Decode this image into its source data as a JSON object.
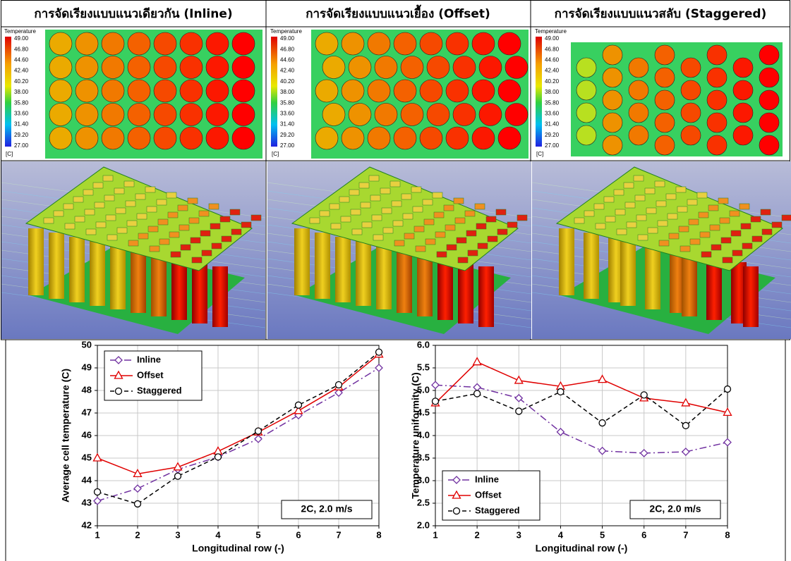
{
  "header": {
    "columns": [
      "การจัดเรียงแบบแนวเดียวกัน (Inline)",
      "การจัดเรียงแบบแนวเยื้อง (Offset)",
      "การจัดเรียงแบบแนวสลับ (Staggered)"
    ]
  },
  "contour_legend": {
    "title": "Temperature",
    "labels": [
      "49.00",
      "46.80",
      "44.60",
      "42.40",
      "40.20",
      "38.00",
      "35.80",
      "33.60",
      "31.40",
      "29.20",
      "27.00"
    ],
    "unit": "[C]"
  },
  "chart_data": [
    {
      "type": "line",
      "xlabel": "Longitudinal row (-)",
      "ylabel": "Average cell temperature (C)",
      "annotation": "2C, 2.0 m/s",
      "x": [
        1,
        2,
        3,
        4,
        5,
        6,
        7,
        8
      ],
      "xlim": [
        1,
        8
      ],
      "xticks": [
        1,
        2,
        3,
        4,
        5,
        6,
        7,
        8
      ],
      "ylim": [
        42,
        50
      ],
      "yticks": [
        42,
        43,
        44,
        45,
        46,
        47,
        48,
        49,
        50
      ],
      "grid": true,
      "legend": "upper left",
      "series": [
        {
          "name": "Inline",
          "color": "#7030a0",
          "marker": "diamond",
          "line_style": "dashdot",
          "values": [
            43.1,
            43.65,
            44.5,
            45.05,
            45.85,
            46.9,
            47.9,
            49.0
          ]
        },
        {
          "name": "Offset",
          "color": "#e00000",
          "marker": "triangle",
          "line_style": "solid",
          "values": [
            45.0,
            44.3,
            44.6,
            45.3,
            46.15,
            47.1,
            48.15,
            49.6
          ]
        },
        {
          "name": "Staggered",
          "color": "#000000",
          "marker": "circle",
          "line_style": "dashed",
          "values": [
            43.5,
            42.97,
            44.2,
            45.05,
            46.2,
            47.35,
            48.25,
            49.7
          ]
        }
      ]
    },
    {
      "type": "line",
      "xlabel": "Longitudinal row (-)",
      "ylabel": "Temperature uniformity (C)",
      "annotation": "2C, 2.0 m/s",
      "x": [
        1,
        2,
        3,
        4,
        5,
        6,
        7,
        8
      ],
      "xlim": [
        1,
        8
      ],
      "xticks": [
        1,
        2,
        3,
        4,
        5,
        6,
        7,
        8
      ],
      "ylim": [
        2,
        6
      ],
      "yticks": [
        {
          "value": 2,
          "label": "2.0"
        },
        {
          "value": 2.5,
          "label": "2.5"
        },
        {
          "value": 3,
          "label": "3.0"
        },
        {
          "value": 3.5,
          "label": "3.5"
        },
        {
          "value": 4,
          "label": "4.0"
        },
        {
          "value": 4.5,
          "label": "4.5"
        },
        {
          "value": 5,
          "label": "5.0"
        },
        {
          "value": 5.5,
          "label": "5.5"
        },
        {
          "value": 6,
          "label": "6.0"
        }
      ],
      "grid": true,
      "legend": "lower left",
      "series": [
        {
          "name": "Inline",
          "color": "#7030a0",
          "marker": "diamond",
          "line_style": "dashdot",
          "values": [
            5.12,
            5.07,
            4.83,
            4.08,
            3.66,
            3.61,
            3.64,
            3.85
          ]
        },
        {
          "name": "Offset",
          "color": "#e00000",
          "marker": "triangle",
          "line_style": "solid",
          "values": [
            4.72,
            5.63,
            5.22,
            5.09,
            5.24,
            4.83,
            4.72,
            4.51
          ]
        },
        {
          "name": "Staggered",
          "color": "#000000",
          "marker": "circle",
          "line_style": "dashed",
          "values": [
            4.76,
            4.93,
            4.54,
            4.97,
            4.28,
            4.9,
            4.22,
            5.03
          ]
        }
      ]
    }
  ]
}
